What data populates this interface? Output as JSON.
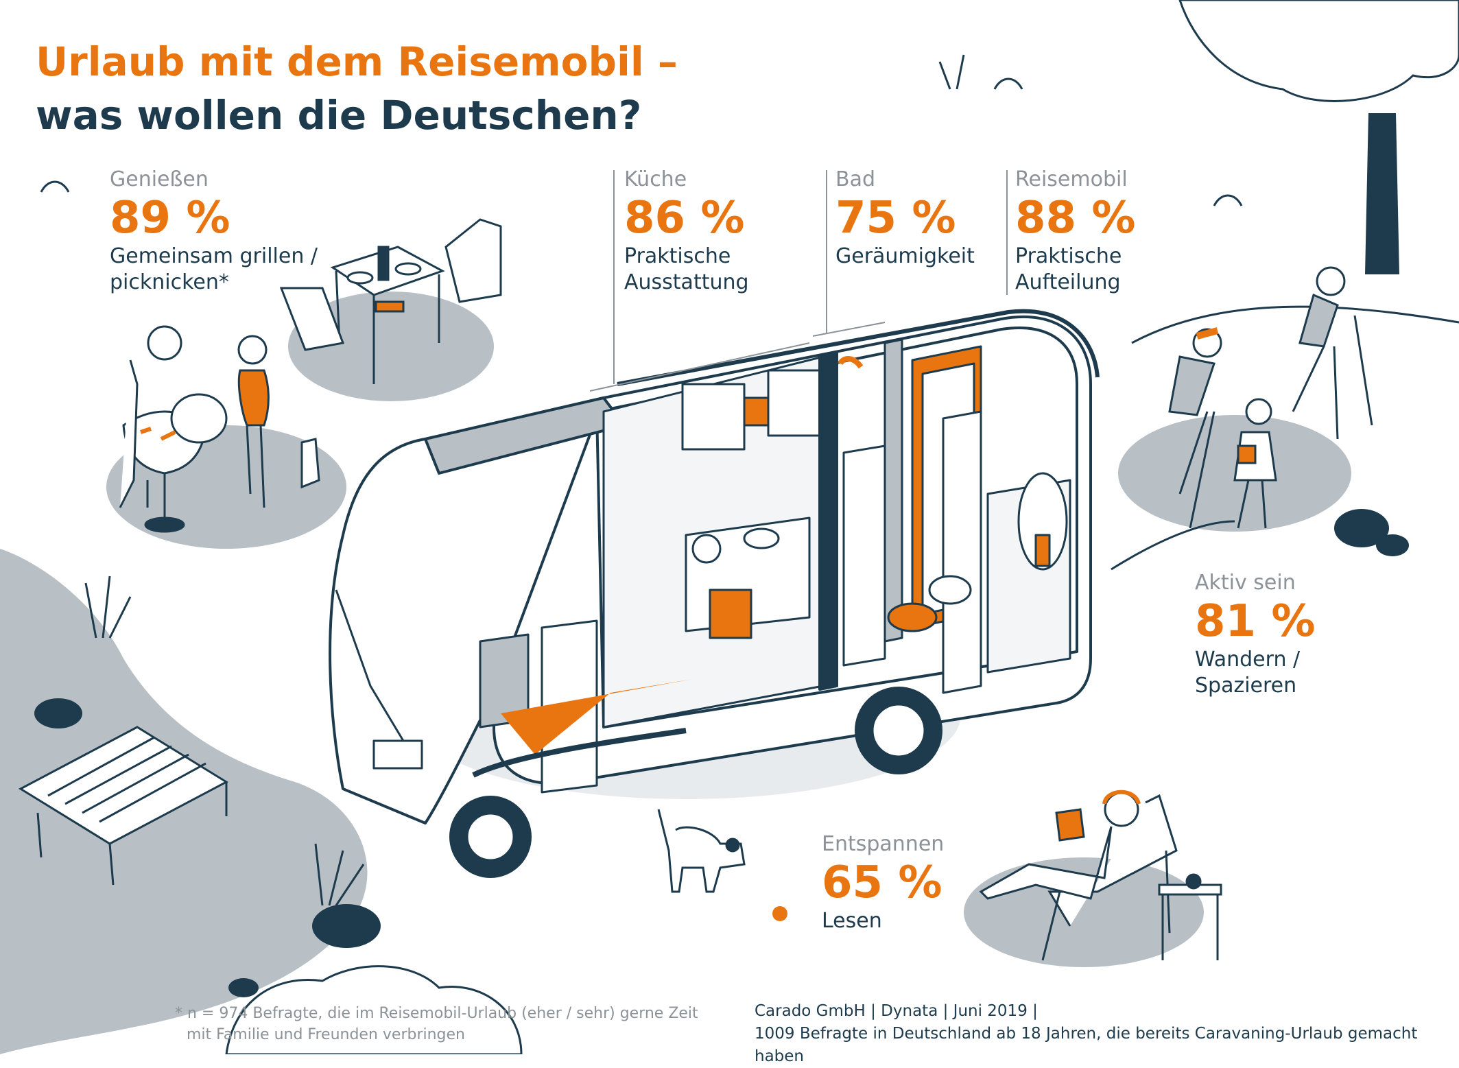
{
  "title": {
    "line1": "Urlaub mit dem Reisemobil –",
    "line2": "was wollen die Deutschen?"
  },
  "stats": {
    "geniessen": {
      "category": "Genießen",
      "percent": "89 %",
      "line1": "Gemeinsam grillen /",
      "line2": "picknicken*"
    },
    "kueche": {
      "category": "Küche",
      "percent": "86 %",
      "line1": "Praktische",
      "line2": "Ausstattung"
    },
    "bad": {
      "category": "Bad",
      "percent": "75 %",
      "line1": "Geräumigkeit"
    },
    "reisemobil": {
      "category": "Reisemobil",
      "percent": "88 %",
      "line1": "Praktische",
      "line2": "Aufteilung"
    },
    "aktiv": {
      "category": "Aktiv sein",
      "percent": "81 %",
      "line1": "Wandern /",
      "line2": "Spazieren"
    },
    "entspannen": {
      "category": "Entspannen",
      "percent": "65 %",
      "line1": "Lesen"
    }
  },
  "footnote": {
    "line1": "* n = 974 Befragte, die im Reisemobil-Urlaub (eher / sehr) gerne Zeit",
    "line2": "mit Familie und Freunden verbringen"
  },
  "source": {
    "line1": "Carado GmbH | Dynata | Juni 2019 |",
    "line2": "1009 Befragte in Deutschland ab 18 Jahren, die bereits Caravaning-Urlaub gemacht haben"
  },
  "colors": {
    "accent": "#e97510",
    "navy": "#1d3b4d",
    "gray": "#b8c0c6",
    "text_gray": "#8b9298"
  },
  "icons": [
    "camper-van-illustration",
    "picnic-table-icon",
    "grill-icon",
    "hiking-family-icon",
    "reader-lounger-icon",
    "dog-icon",
    "tree-icon",
    "pier-icon"
  ]
}
